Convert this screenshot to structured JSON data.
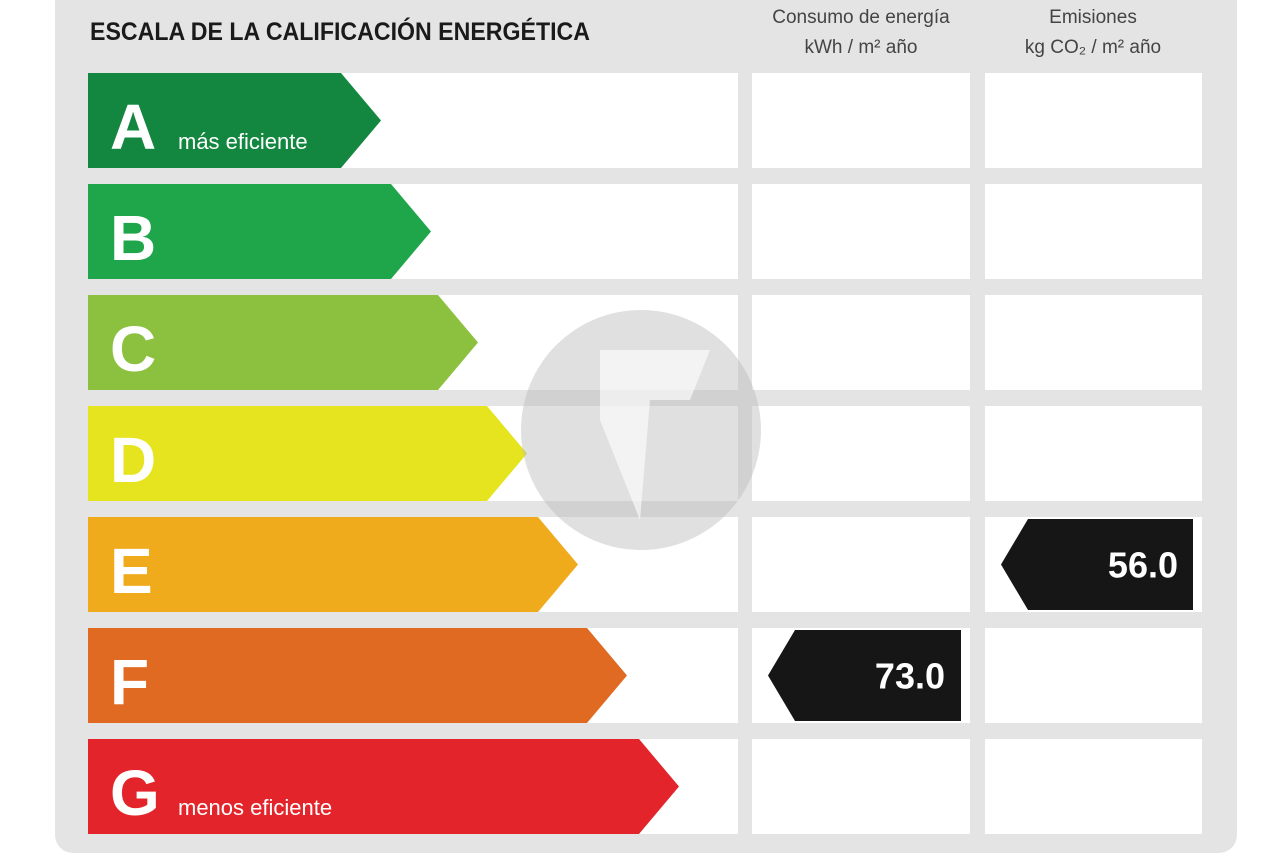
{
  "title": "ESCALA DE LA CALIFICACIÓN ENERGÉTICA",
  "columns": [
    {
      "line1": "Consumo de energía",
      "line2": "kWh / m² año"
    },
    {
      "line1": "Emisiones",
      "line2": "kg CO₂ / m² año"
    }
  ],
  "rows": [
    {
      "letter": "A",
      "label": "más eficiente",
      "color": "#13873f"
    },
    {
      "letter": "B",
      "color": "#1fa54a"
    },
    {
      "letter": "C",
      "color": "#8cc13f"
    },
    {
      "letter": "D",
      "color": "#e6e41f"
    },
    {
      "letter": "E",
      "color": "#f0ab1c",
      "emissions": "56.0"
    },
    {
      "letter": "F",
      "color": "#e06a22",
      "consumption": "73.0"
    },
    {
      "letter": "G",
      "label": "menos eficiente",
      "color": "#e3242b"
    }
  ]
}
